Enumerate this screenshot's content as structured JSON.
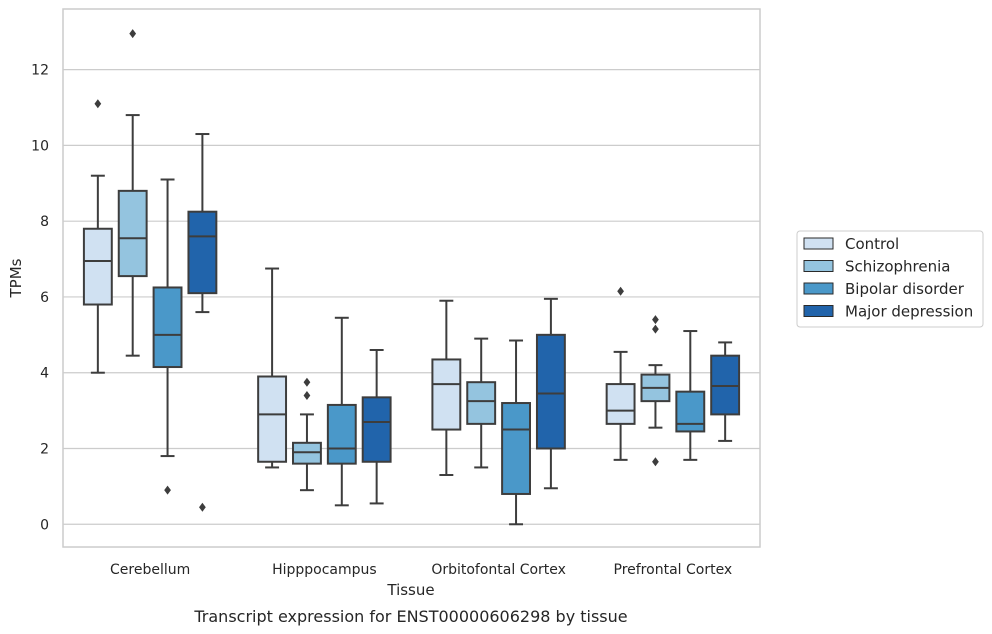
{
  "chart_data": {
    "type": "boxplot",
    "xlabel": "Tissue",
    "ylabel": "TPMs",
    "caption": "Transcript expression for ENST00000606298 by tissue",
    "ylim": [
      -0.6,
      13.6
    ],
    "yticks": [
      0,
      2,
      4,
      6,
      8,
      10,
      12
    ],
    "grid": "horizontal",
    "legend_position": "right",
    "categories": [
      "Cerebellum",
      "Hipppocampus",
      "Orbitofontal Cortex",
      "Prefrontal Cortex"
    ],
    "series": [
      {
        "name": "Control",
        "color": "#d0e1f2",
        "boxes": [
          {
            "whisker_low": 4.0,
            "q1": 5.8,
            "median": 6.95,
            "q3": 7.8,
            "whisker_high": 9.2,
            "outliers": [
              11.1
            ]
          },
          {
            "whisker_low": 1.5,
            "q1": 1.65,
            "median": 2.9,
            "q3": 3.9,
            "whisker_high": 6.75,
            "outliers": []
          },
          {
            "whisker_low": 1.3,
            "q1": 2.5,
            "median": 3.7,
            "q3": 4.35,
            "whisker_high": 5.9,
            "outliers": []
          },
          {
            "whisker_low": 1.7,
            "q1": 2.65,
            "median": 3.0,
            "q3": 3.7,
            "whisker_high": 4.55,
            "outliers": [
              6.15
            ]
          }
        ]
      },
      {
        "name": "Schizophrenia",
        "color": "#94c4df",
        "boxes": [
          {
            "whisker_low": 4.45,
            "q1": 6.55,
            "median": 7.55,
            "q3": 8.8,
            "whisker_high": 10.8,
            "outliers": [
              12.95
            ]
          },
          {
            "whisker_low": 0.9,
            "q1": 1.6,
            "median": 1.9,
            "q3": 2.15,
            "whisker_high": 2.9,
            "outliers": [
              3.4,
              3.75
            ]
          },
          {
            "whisker_low": 1.5,
            "q1": 2.65,
            "median": 3.25,
            "q3": 3.75,
            "whisker_high": 4.9,
            "outliers": []
          },
          {
            "whisker_low": 2.55,
            "q1": 3.25,
            "median": 3.6,
            "q3": 3.95,
            "whisker_high": 4.2,
            "outliers": [
              5.4,
              5.15,
              1.65
            ]
          }
        ]
      },
      {
        "name": "Bipolar disorder",
        "color": "#4a98c9",
        "boxes": [
          {
            "whisker_low": 1.8,
            "q1": 4.15,
            "median": 5.0,
            "q3": 6.25,
            "whisker_high": 9.1,
            "outliers": [
              0.9
            ]
          },
          {
            "whisker_low": 0.5,
            "q1": 1.6,
            "median": 2.0,
            "q3": 3.15,
            "whisker_high": 5.45,
            "outliers": []
          },
          {
            "whisker_low": 0.0,
            "q1": 0.8,
            "median": 2.5,
            "q3": 3.2,
            "whisker_high": 4.85,
            "outliers": []
          },
          {
            "whisker_low": 1.7,
            "q1": 2.45,
            "median": 2.65,
            "q3": 3.5,
            "whisker_high": 5.1,
            "outliers": []
          }
        ]
      },
      {
        "name": "Major depression",
        "color": "#2164ab",
        "boxes": [
          {
            "whisker_low": 5.6,
            "q1": 6.1,
            "median": 7.6,
            "q3": 8.25,
            "whisker_high": 10.3,
            "outliers": [
              0.45
            ]
          },
          {
            "whisker_low": 0.55,
            "q1": 1.65,
            "median": 2.7,
            "q3": 3.35,
            "whisker_high": 4.6,
            "outliers": []
          },
          {
            "whisker_low": 0.95,
            "q1": 2.0,
            "median": 3.45,
            "q3": 5.0,
            "whisker_high": 5.95,
            "outliers": []
          },
          {
            "whisker_low": 2.2,
            "q1": 2.9,
            "median": 3.65,
            "q3": 4.45,
            "whisker_high": 4.8,
            "outliers": []
          }
        ]
      }
    ]
  }
}
